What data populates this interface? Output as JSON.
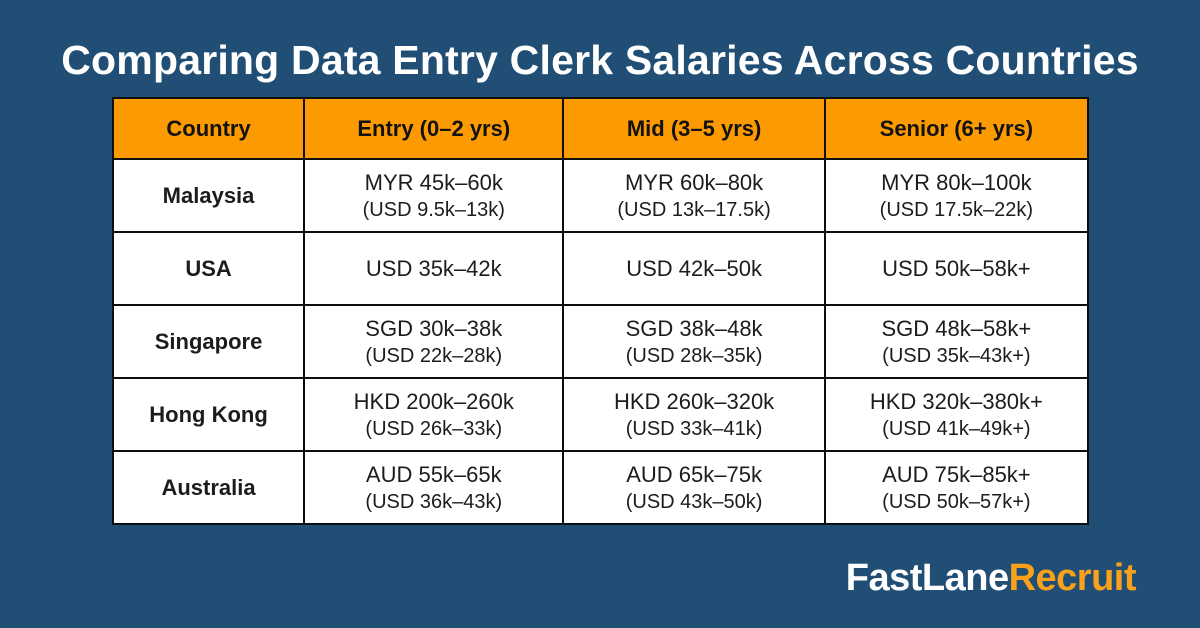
{
  "title": "Comparing Data Entry Clerk Salaries Across Countries",
  "colors": {
    "background": "#204E74",
    "header_orange": "#FC9A02",
    "logo_orange": "#F9A11B",
    "table_border": "#0E0E0E",
    "cell_background": "#FFFFFF",
    "title_text": "#FFFFFF"
  },
  "table": {
    "headers": [
      "Country",
      "Entry (0–2 yrs)",
      "Mid (3–5 yrs)",
      "Senior (6+ yrs)"
    ],
    "rows": [
      {
        "country": "Malaysia",
        "entry": {
          "local": "MYR 45k–60k",
          "usd": "(USD 9.5k–13k)"
        },
        "mid": {
          "local": "MYR 60k–80k",
          "usd": "(USD 13k–17.5k)"
        },
        "senior": {
          "local": "MYR 80k–100k",
          "usd": "(USD 17.5k–22k)"
        }
      },
      {
        "country": "USA",
        "entry": {
          "local": "USD 35k–42k",
          "usd": ""
        },
        "mid": {
          "local": "USD 42k–50k",
          "usd": ""
        },
        "senior": {
          "local": "USD 50k–58k+",
          "usd": ""
        }
      },
      {
        "country": "Singapore",
        "entry": {
          "local": "SGD 30k–38k",
          "usd": "(USD 22k–28k)"
        },
        "mid": {
          "local": "SGD 38k–48k",
          "usd": "(USD 28k–35k)"
        },
        "senior": {
          "local": "SGD 48k–58k+",
          "usd": "(USD 35k–43k+)"
        }
      },
      {
        "country": "Hong Kong",
        "entry": {
          "local": "HKD 200k–260k",
          "usd": "(USD 26k–33k)"
        },
        "mid": {
          "local": "HKD 260k–320k",
          "usd": "(USD 33k–41k)"
        },
        "senior": {
          "local": "HKD 320k–380k+",
          "usd": "(USD 41k–49k+)"
        }
      },
      {
        "country": "Australia",
        "entry": {
          "local": "AUD 55k–65k",
          "usd": "(USD 36k–43k)"
        },
        "mid": {
          "local": "AUD 65k–75k",
          "usd": "(USD 43k–50k)"
        },
        "senior": {
          "local": "AUD 75k–85k+",
          "usd": "(USD 50k–57k+)"
        }
      }
    ]
  },
  "logo": {
    "part1": "FastLane",
    "part2": "Recruit"
  },
  "chart_data": {
    "type": "table",
    "title": "Comparing Data Entry Clerk Salaries Across Countries",
    "columns": [
      "Country",
      "Entry (0–2 yrs)",
      "Mid (3–5 yrs)",
      "Senior (6+ yrs)"
    ],
    "rows": [
      [
        "Malaysia",
        "MYR 45k–60k (USD 9.5k–13k)",
        "MYR 60k–80k (USD 13k–17.5k)",
        "MYR 80k–100k (USD 17.5k–22k)"
      ],
      [
        "USA",
        "USD 35k–42k",
        "USD 42k–50k",
        "USD 50k–58k+"
      ],
      [
        "Singapore",
        "SGD 30k–38k (USD 22k–28k)",
        "SGD 38k–48k (USD 28k–35k)",
        "SGD 48k–58k+ (USD 35k–43k+)"
      ],
      [
        "Hong Kong",
        "HKD 200k–260k (USD 26k–33k)",
        "HKD 260k–320k (USD 33k–41k)",
        "HKD 320k–380k+ (USD 41k–49k+)"
      ],
      [
        "Australia",
        "AUD 55k–65k (USD 36k–43k)",
        "AUD 65k–75k (USD 43k–50k)",
        "AUD 75k–85k+ (USD 50k–57k+)"
      ]
    ]
  }
}
